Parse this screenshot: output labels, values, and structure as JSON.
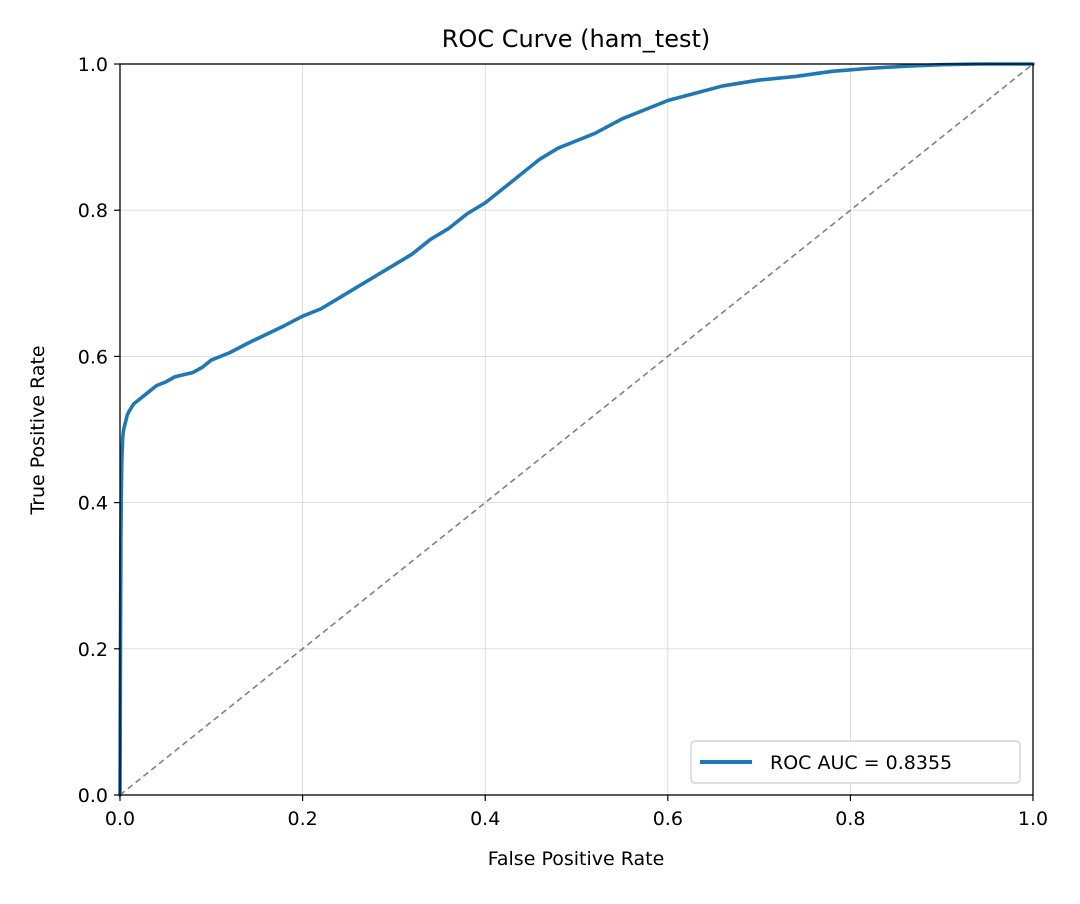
{
  "chart_data": {
    "type": "line",
    "title": "ROC Curve (ham_test)",
    "xlabel": "False Positive Rate",
    "ylabel": "True Positive Rate",
    "xlim": [
      0.0,
      1.0
    ],
    "ylim": [
      0.0,
      1.0
    ],
    "x_ticks": [
      0.0,
      0.2,
      0.4,
      0.6,
      0.8,
      1.0
    ],
    "y_ticks": [
      0.0,
      0.2,
      0.4,
      0.6,
      0.8,
      1.0
    ],
    "x_tick_labels": [
      "0.0",
      "0.2",
      "0.4",
      "0.6",
      "0.8",
      "1.0"
    ],
    "y_tick_labels": [
      "0.0",
      "0.2",
      "0.4",
      "0.6",
      "0.8",
      "1.0"
    ],
    "grid": true,
    "legend_position": "lower-right",
    "series": [
      {
        "name": "ROC AUC = 0.8355",
        "color": "#1f77b4",
        "style": "solid",
        "x": [
          0.0,
          0.0005,
          0.001,
          0.0015,
          0.002,
          0.003,
          0.004,
          0.006,
          0.008,
          0.01,
          0.015,
          0.02,
          0.03,
          0.04,
          0.05,
          0.06,
          0.07,
          0.08,
          0.09,
          0.1,
          0.12,
          0.14,
          0.16,
          0.18,
          0.2,
          0.22,
          0.24,
          0.26,
          0.28,
          0.3,
          0.32,
          0.34,
          0.36,
          0.38,
          0.4,
          0.42,
          0.44,
          0.46,
          0.48,
          0.5,
          0.52,
          0.55,
          0.58,
          0.6,
          0.63,
          0.66,
          0.7,
          0.74,
          0.78,
          0.82,
          0.86,
          0.9,
          0.94,
          0.97,
          1.0
        ],
        "y": [
          0.0,
          0.2,
          0.35,
          0.42,
          0.46,
          0.49,
          0.5,
          0.51,
          0.52,
          0.525,
          0.535,
          0.54,
          0.55,
          0.56,
          0.565,
          0.572,
          0.575,
          0.578,
          0.585,
          0.595,
          0.605,
          0.618,
          0.63,
          0.642,
          0.655,
          0.665,
          0.68,
          0.695,
          0.71,
          0.725,
          0.74,
          0.76,
          0.775,
          0.795,
          0.81,
          0.83,
          0.85,
          0.87,
          0.885,
          0.895,
          0.905,
          0.925,
          0.94,
          0.95,
          0.96,
          0.97,
          0.978,
          0.983,
          0.99,
          0.994,
          0.997,
          0.999,
          1.0,
          1.0,
          1.0
        ]
      },
      {
        "color": "#808080",
        "style": "dashed",
        "x": [
          0.0,
          1.0
        ],
        "y": [
          0.0,
          1.0
        ]
      }
    ]
  }
}
